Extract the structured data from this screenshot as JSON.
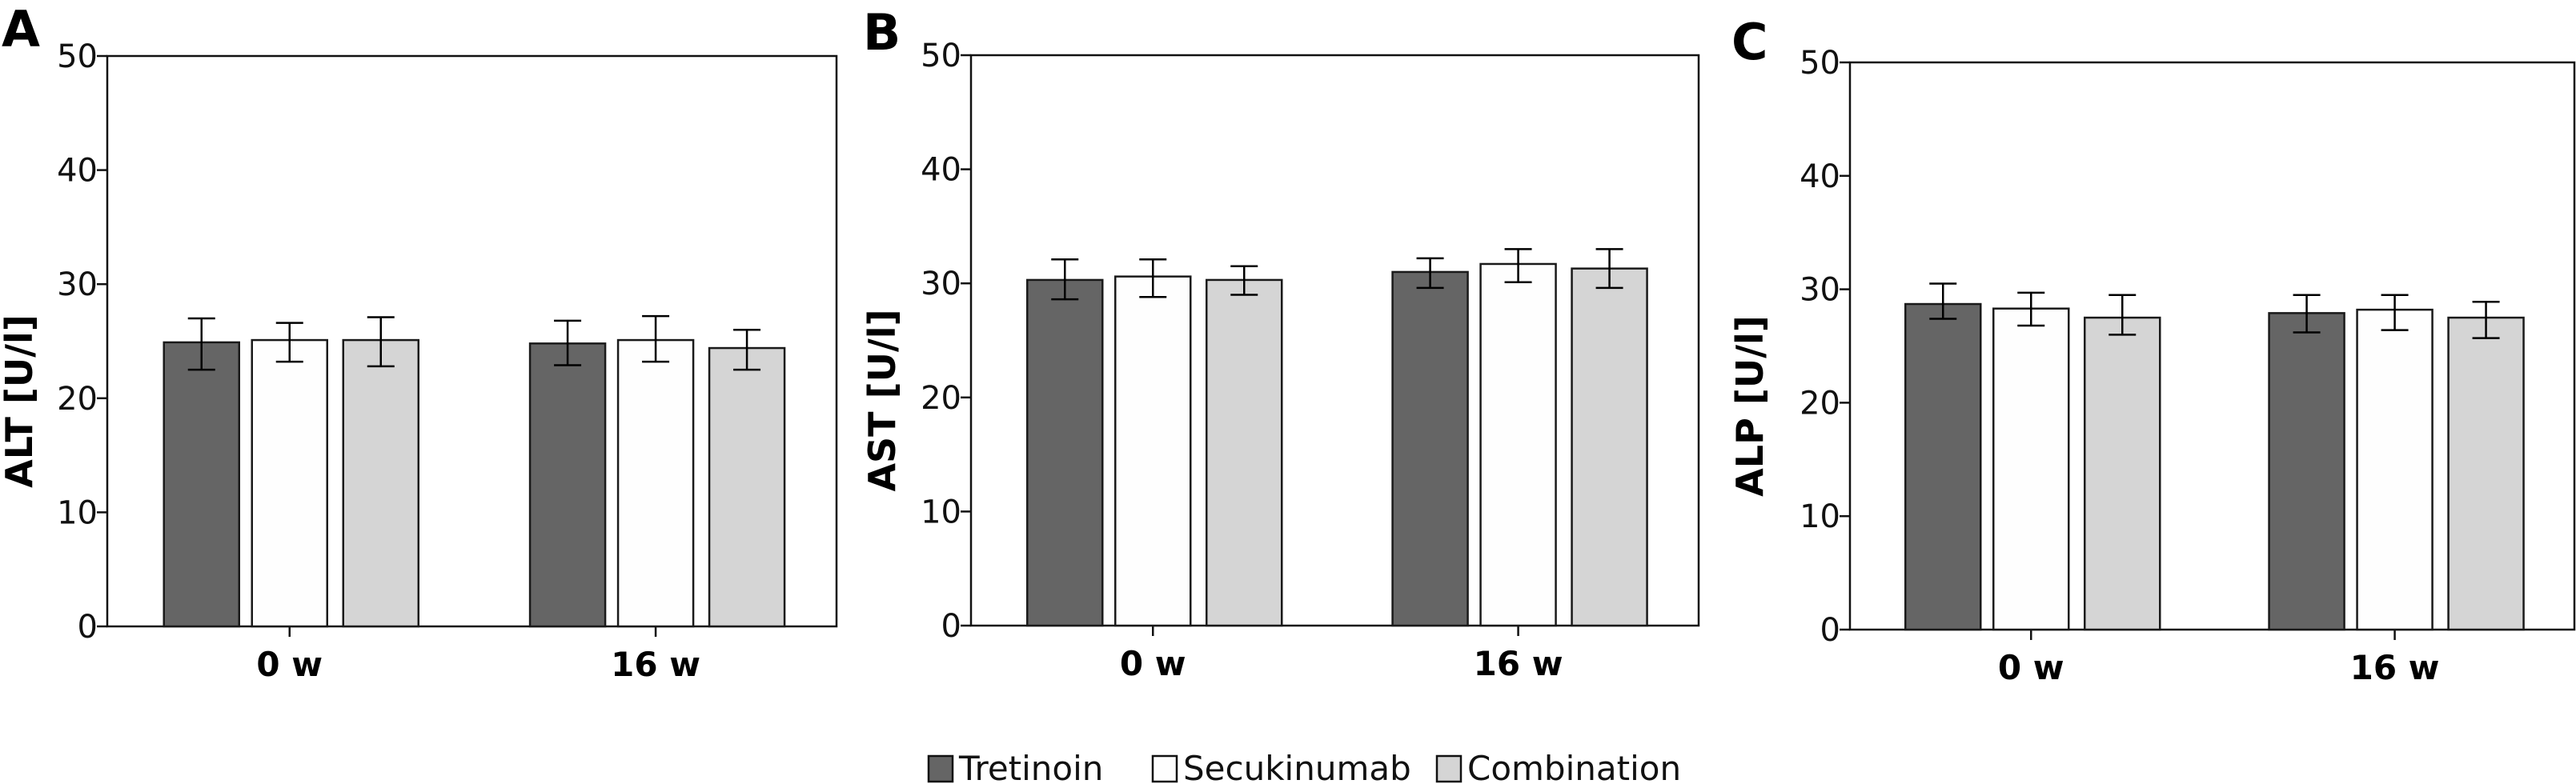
{
  "figure": {
    "legend": [
      {
        "label": "Tretinoin",
        "color": "#656565"
      },
      {
        "label": "Secukinumab",
        "color": "#fefefe"
      },
      {
        "label": "Combination",
        "color": "#d5d5d5"
      }
    ],
    "legend_placement": "bottom-center"
  },
  "chart_data": [
    {
      "type": "bar",
      "panel_label": "A",
      "title": "",
      "xlabel": "",
      "ylabel": "ALT [U/l]",
      "ylim": [
        0,
        50
      ],
      "yticks": [
        0,
        10,
        20,
        30,
        40,
        50
      ],
      "grid": false,
      "categories": [
        "0 w",
        "16 w"
      ],
      "series": [
        {
          "name": "Tretinoin",
          "values": [
            24.9,
            24.8
          ],
          "err_upper": [
            27.0,
            26.8
          ],
          "err_lower": [
            22.5,
            22.9
          ]
        },
        {
          "name": "Secukinumab",
          "values": [
            25.1,
            25.1
          ],
          "err_upper": [
            26.6,
            27.2
          ],
          "err_lower": [
            23.2,
            23.2
          ]
        },
        {
          "name": "Combination",
          "values": [
            25.1,
            24.4
          ],
          "err_upper": [
            27.1,
            26.0
          ],
          "err_lower": [
            22.8,
            22.5
          ]
        }
      ]
    },
    {
      "type": "bar",
      "panel_label": "B",
      "title": "",
      "xlabel": "",
      "ylabel": "AST [U/l]",
      "ylim": [
        0,
        50
      ],
      "yticks": [
        0,
        10,
        20,
        30,
        40,
        50
      ],
      "grid": false,
      "categories": [
        "0 w",
        "16 w"
      ],
      "series": [
        {
          "name": "Tretinoin",
          "values": [
            30.3,
            31.0
          ],
          "err_upper": [
            32.1,
            32.2
          ],
          "err_lower": [
            28.6,
            29.6
          ]
        },
        {
          "name": "Secukinumab",
          "values": [
            30.6,
            31.7
          ],
          "err_upper": [
            32.1,
            33.0
          ],
          "err_lower": [
            28.8,
            30.1
          ]
        },
        {
          "name": "Combination",
          "values": [
            30.3,
            31.3
          ],
          "err_upper": [
            31.5,
            33.0
          ],
          "err_lower": [
            29.0,
            29.6
          ]
        }
      ]
    },
    {
      "type": "bar",
      "panel_label": "C",
      "title": "",
      "xlabel": "",
      "ylabel": "ALP [U/l]",
      "ylim": [
        0,
        50
      ],
      "yticks": [
        0,
        10,
        20,
        30,
        40,
        50
      ],
      "grid": false,
      "categories": [
        "0 w",
        "16 w"
      ],
      "series": [
        {
          "name": "Tretinoin",
          "values": [
            28.7,
            27.9
          ],
          "err_upper": [
            30.5,
            29.5
          ],
          "err_lower": [
            27.4,
            26.2
          ]
        },
        {
          "name": "Secukinumab",
          "values": [
            28.3,
            28.2
          ],
          "err_upper": [
            29.7,
            29.5
          ],
          "err_lower": [
            26.8,
            26.4
          ]
        },
        {
          "name": "Combination",
          "values": [
            27.5,
            27.5
          ],
          "err_upper": [
            29.5,
            28.9
          ],
          "err_lower": [
            26.0,
            25.7
          ]
        }
      ]
    }
  ]
}
